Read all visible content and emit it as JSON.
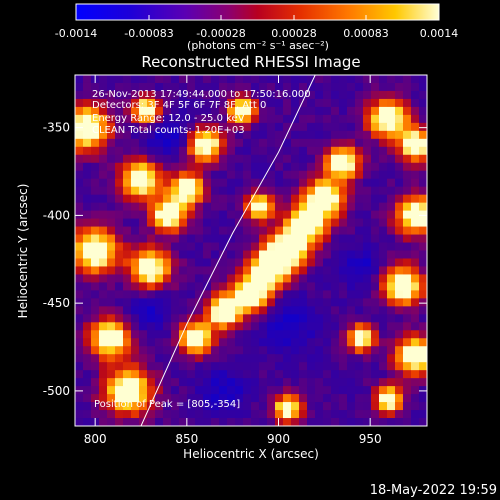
{
  "colorbar": {
    "ticks": [
      "-0.0014",
      "-0.00083",
      "-0.00028",
      "0.00028",
      "0.00083",
      "0.0014"
    ],
    "units": "(photons cm⁻² s⁻¹ asec⁻²)"
  },
  "footer": {
    "timestamp": "18-May-2022 19:59"
  },
  "chart_data": {
    "type": "heatmap",
    "title": "Reconstructed RHESSI Image",
    "xlabel": "Heliocentric X (arcsec)",
    "ylabel": "Heliocentric Y (arcsec)",
    "xlim": [
      789,
      981
    ],
    "ylim": [
      -520,
      -320
    ],
    "xticks": [
      800,
      850,
      900,
      950
    ],
    "yticks": [
      -350,
      -400,
      -450,
      -500
    ],
    "clim": [
      -0.0014,
      0.0014
    ],
    "info": {
      "time": "26-Nov-2013 17:49:44.000 to 17:50:16.000",
      "detectors": "Detectors: 3F 4F 5F 6F 7F 8F, Att 0",
      "energy": "Energy Range: 12.0 - 25.0 keV",
      "counts": "CLEAN  Total counts: 1.20E+03"
    },
    "peak": "Position of Peak = [805,-354]",
    "limb_curve": [
      [
        825,
        -520
      ],
      [
        850,
        -462
      ],
      [
        875,
        -410
      ],
      [
        900,
        -364
      ],
      [
        920,
        -320
      ]
    ]
  }
}
